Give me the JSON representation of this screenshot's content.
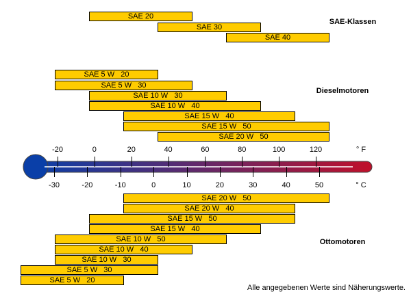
{
  "chart_data": {
    "type": "bar",
    "orientation": "horizontal-range",
    "unit": "°C",
    "groups": [
      {
        "label": "SAE-Klassen",
        "bars": [
          {
            "label": "SAE 20",
            "from": -20,
            "to": 10
          },
          {
            "label": "SAE 30",
            "from": 0,
            "to": 30
          },
          {
            "label": "SAE 40",
            "from": 20,
            "to": 50
          }
        ]
      },
      {
        "label": "Dieselmotoren",
        "bars": [
          {
            "label": "SAE 5 W   20",
            "from": -30,
            "to": 0
          },
          {
            "label": "SAE 5 W   30",
            "from": -30,
            "to": 10
          },
          {
            "label": "SAE 10 W   30",
            "from": -20,
            "to": 20
          },
          {
            "label": "SAE 10 W   40",
            "from": -20,
            "to": 30
          },
          {
            "label": "SAE 15 W   40",
            "from": -10,
            "to": 40
          },
          {
            "label": "SAE 15 W   50",
            "from": -10,
            "to": 50
          },
          {
            "label": "SAE 20 W   50",
            "from": 0,
            "to": 50
          }
        ]
      },
      {
        "label": "Ottomotoren",
        "bars": [
          {
            "label": "SAE 20 W   50",
            "from": -10,
            "to": 50
          },
          {
            "label": "SAE 20 W   40",
            "from": -10,
            "to": 40
          },
          {
            "label": "SAE 15 W   50",
            "from": -20,
            "to": 40
          },
          {
            "label": "SAE 15 W   40",
            "from": -20,
            "to": 30
          },
          {
            "label": "SAE 10 W   50",
            "from": -30,
            "to": 20
          },
          {
            "label": "SAE 10 W   40",
            "from": -30,
            "to": 10
          },
          {
            "label": "SAE 10 W   30",
            "from": -30,
            "to": 0
          },
          {
            "label": "SAE 5 W   30",
            "from": -40,
            "to": 0
          },
          {
            "label": "SAE 5 W   20",
            "from": -40,
            "to": -10
          }
        ]
      }
    ],
    "fahrenheit_ticks": [
      -20,
      0,
      20,
      40,
      60,
      80,
      100,
      120
    ],
    "fahrenheit_unit": "° F",
    "celsius_ticks": [
      -30,
      -20,
      -10,
      0,
      10,
      20,
      30,
      40,
      50
    ],
    "celsius_unit": "° C",
    "bar_color": "#ffcc00",
    "thermometer_colors": [
      "#0a3fa8",
      "#c0102a"
    ]
  },
  "footnote": "Alle angegebenen Werte sind Näherungswerte."
}
